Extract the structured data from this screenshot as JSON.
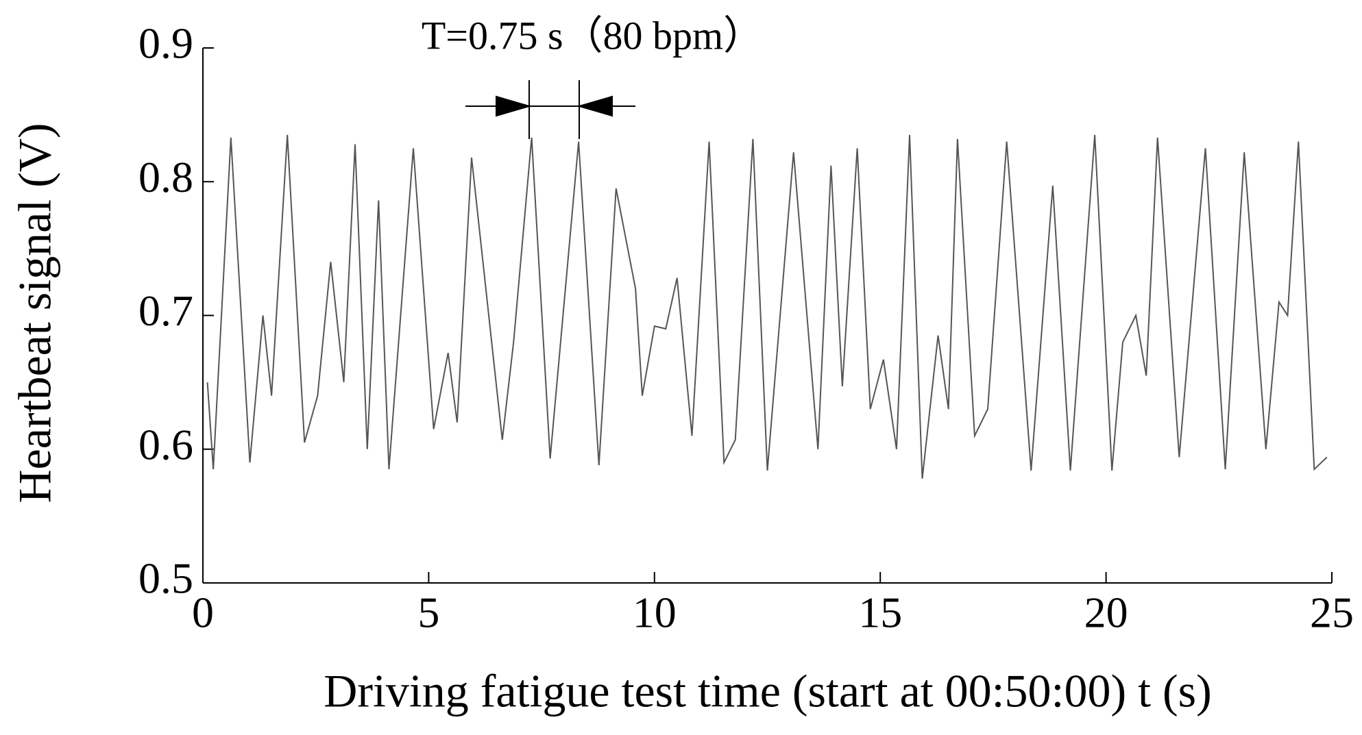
{
  "chart_data": {
    "type": "line",
    "annotation": "T=0.75 s（80 bpm）",
    "xlabel": "Driving fatigue test time (start at 00:50:00) t  (s)",
    "ylabel": "Heartbeat signal (V)",
    "xlim": [
      0,
      25
    ],
    "xticks": [
      0,
      5,
      10,
      15,
      20,
      25
    ],
    "ylim": [
      0.5,
      0.9
    ],
    "yticks": [
      0.5,
      0.6,
      0.7,
      0.8,
      0.9
    ],
    "grid": false,
    "series": [
      {
        "name": "Heartbeat signal",
        "color": "#555555",
        "x": [
          0.1,
          0.23,
          0.62,
          1.04,
          1.33,
          1.52,
          1.87,
          2.25,
          2.54,
          2.83,
          3.12,
          3.37,
          3.64,
          3.89,
          4.12,
          4.66,
          5.11,
          5.43,
          5.63,
          5.95,
          6.63,
          6.88,
          7.28,
          7.69,
          8.32,
          8.77,
          9.15,
          9.58,
          9.73,
          10.0,
          10.25,
          10.5,
          10.83,
          11.21,
          11.54,
          11.79,
          12.18,
          12.5,
          13.08,
          13.62,
          13.91,
          14.16,
          14.49,
          14.78,
          15.07,
          15.36,
          15.65,
          15.93,
          16.28,
          16.51,
          16.71,
          17.09,
          17.38,
          17.8,
          18.34,
          18.82,
          19.21,
          19.75,
          20.13,
          20.37,
          20.66,
          20.89,
          21.14,
          21.62,
          22.2,
          22.64,
          23.06,
          23.54,
          23.83,
          24.02,
          24.26,
          24.61,
          24.89
        ],
        "values": [
          0.65,
          0.585,
          0.833,
          0.59,
          0.7,
          0.64,
          0.835,
          0.605,
          0.64,
          0.74,
          0.65,
          0.828,
          0.6,
          0.786,
          0.585,
          0.825,
          0.615,
          0.672,
          0.62,
          0.818,
          0.607,
          0.68,
          0.833,
          0.593,
          0.83,
          0.588,
          0.795,
          0.72,
          0.64,
          0.692,
          0.69,
          0.728,
          0.61,
          0.83,
          0.59,
          0.607,
          0.832,
          0.584,
          0.822,
          0.6,
          0.812,
          0.647,
          0.825,
          0.63,
          0.667,
          0.6,
          0.835,
          0.578,
          0.685,
          0.63,
          0.832,
          0.61,
          0.63,
          0.83,
          0.584,
          0.797,
          0.584,
          0.835,
          0.584,
          0.68,
          0.7,
          0.655,
          0.833,
          0.594,
          0.825,
          0.585,
          0.822,
          0.6,
          0.71,
          0.7,
          0.83,
          0.585,
          0.594
        ]
      }
    ]
  }
}
